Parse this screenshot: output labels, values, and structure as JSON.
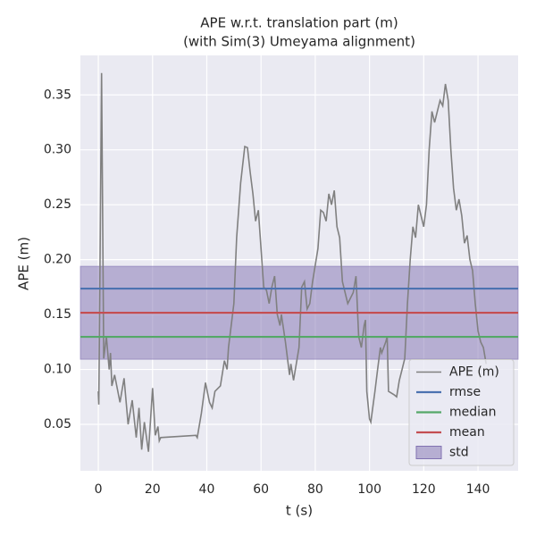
{
  "chart_data": {
    "type": "line",
    "title": "APE w.r.t. translation part (m)",
    "subtitle": "(with Sim(3) Umeyama alignment)",
    "x_label": "t (s)",
    "y_label": "APE (m)",
    "xlim": [
      -6.6,
      154.8
    ],
    "ylim": [
      0.0077,
      0.386
    ],
    "xticks": [
      0,
      20,
      40,
      60,
      80,
      100,
      120,
      140
    ],
    "yticks": [
      0.05,
      {
        "value": 0.1,
        "label": "0.10"
      },
      0.15,
      {
        "value": 0.2,
        "label": "0.20"
      },
      0.25,
      {
        "value": 0.3,
        "label": "0.30"
      },
      0.35
    ],
    "grid": true,
    "legend": "lower right",
    "series": [
      {
        "name": "APE (m)",
        "color": "#808080",
        "x": [
          0,
          0.2,
          0.5,
          1.2,
          2,
          3,
          4,
          4.5,
          5,
          6,
          8,
          9.5,
          11,
          12.5,
          14,
          15,
          16,
          17,
          18.5,
          20,
          21,
          22,
          22.5,
          23,
          36,
          36.5,
          38,
          39.5,
          41,
          42,
          43,
          45,
          46.5,
          47.5,
          48,
          50,
          51,
          52.5,
          54,
          55,
          56,
          57,
          58,
          59,
          60,
          61,
          62,
          63,
          64,
          65,
          66,
          67,
          67.5,
          69,
          70.5,
          71,
          72,
          74,
          75,
          76,
          77,
          78,
          79,
          81,
          82,
          83,
          84,
          85,
          86,
          87,
          88,
          89,
          90,
          92,
          94,
          95,
          96,
          97,
          98,
          98.5,
          99,
          100,
          100.5,
          102,
          103,
          104,
          104.5,
          106,
          106.5,
          107,
          109,
          110,
          111,
          112,
          113,
          114,
          115,
          116,
          117,
          118,
          119,
          120,
          121,
          122,
          123,
          124,
          126,
          127,
          128,
          129,
          130,
          131,
          132,
          133,
          134,
          135,
          136,
          137,
          138,
          139,
          140,
          141,
          142,
          143
        ],
        "values": [
          0.08,
          0.068,
          0.16,
          0.37,
          0.11,
          0.13,
          0.1,
          0.115,
          0.085,
          0.095,
          0.07,
          0.092,
          0.05,
          0.072,
          0.038,
          0.065,
          0.027,
          0.052,
          0.025,
          0.083,
          0.04,
          0.048,
          0.035,
          0.038,
          0.04,
          0.038,
          0.06,
          0.088,
          0.07,
          0.065,
          0.08,
          0.085,
          0.108,
          0.1,
          0.12,
          0.16,
          0.22,
          0.27,
          0.303,
          0.302,
          0.28,
          0.26,
          0.235,
          0.245,
          0.21,
          0.175,
          0.172,
          0.16,
          0.175,
          0.185,
          0.15,
          0.14,
          0.15,
          0.125,
          0.095,
          0.105,
          0.09,
          0.12,
          0.175,
          0.18,
          0.155,
          0.16,
          0.18,
          0.21,
          0.245,
          0.243,
          0.235,
          0.26,
          0.25,
          0.263,
          0.23,
          0.22,
          0.18,
          0.16,
          0.17,
          0.185,
          0.13,
          0.12,
          0.14,
          0.145,
          0.08,
          0.055,
          0.052,
          0.08,
          0.1,
          0.12,
          0.115,
          0.125,
          0.13,
          0.08,
          0.077,
          0.075,
          0.09,
          0.1,
          0.11,
          0.16,
          0.2,
          0.23,
          0.22,
          0.25,
          0.24,
          0.23,
          0.25,
          0.3,
          0.335,
          0.325,
          0.345,
          0.34,
          0.36,
          0.345,
          0.3,
          0.265,
          0.245,
          0.255,
          0.24,
          0.215,
          0.222,
          0.2,
          0.19,
          0.16,
          0.135,
          0.125,
          0.12,
          0.105
        ]
      }
    ],
    "reference_lines": [
      {
        "name": "rmse",
        "color": "#4c72b0",
        "value": 0.1736
      },
      {
        "name": "median",
        "color": "#55a868",
        "value": 0.1297
      },
      {
        "name": "mean",
        "color": "#c44e52",
        "value": 0.1516
      }
    ],
    "band": {
      "name": "std",
      "color": "#8172b2",
      "value": 0.0423
    }
  }
}
